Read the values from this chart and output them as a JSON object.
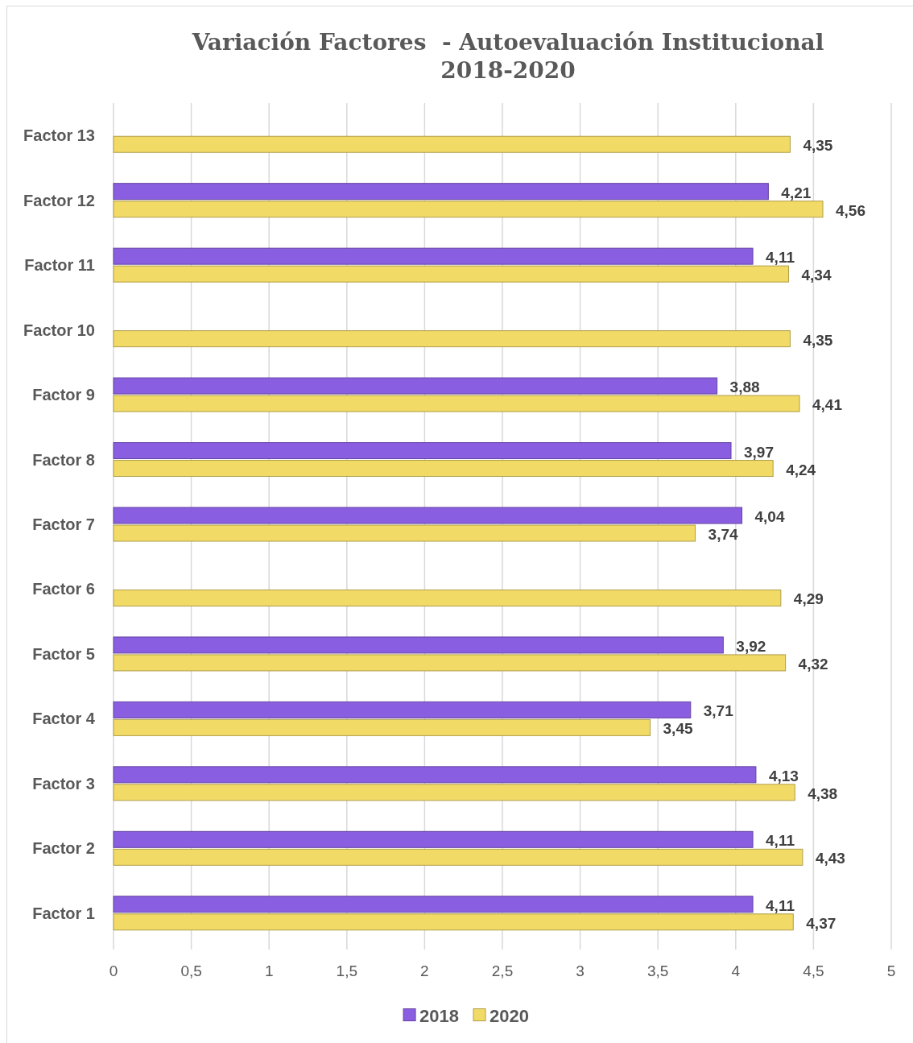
{
  "chart_data": {
    "type": "bar",
    "orientation": "horizontal",
    "title": "Variación Factores  - Autoevaluación Institucional 2018-2020",
    "categories": [
      "Factor 13",
      "Factor 12",
      "Factor 11",
      "Factor 10",
      "Factor 9",
      "Factor 8",
      "Factor 7",
      "Factor 6",
      "Factor 5",
      "Factor 4",
      "Factor 3",
      "Factor 2",
      "Factor 1"
    ],
    "series": [
      {
        "name": "2018",
        "color": "#8a5ee0",
        "values": [
          null,
          4.21,
          4.11,
          null,
          3.88,
          3.97,
          4.04,
          null,
          3.92,
          3.71,
          4.13,
          4.11,
          4.11
        ],
        "value_labels": [
          null,
          "4,21",
          "4,11",
          null,
          "3,88",
          "3,97",
          "4,04",
          null,
          "3,92",
          "3,71",
          "4,13",
          "4,11",
          "4,11"
        ]
      },
      {
        "name": "2020",
        "color": "#f2da66",
        "values": [
          4.35,
          4.56,
          4.34,
          4.35,
          4.41,
          4.24,
          3.74,
          4.29,
          4.32,
          3.45,
          4.38,
          4.43,
          4.37
        ],
        "value_labels": [
          "4,35",
          "4,56",
          "4,34",
          "4,35",
          "4,41",
          "4,24",
          "3,74",
          "4,29",
          "4,32",
          "3,45",
          "4,38",
          "4,43",
          "4,37"
        ]
      }
    ],
    "xlim": [
      0,
      5
    ],
    "xticks": [
      0,
      {
        "value": 0.5,
        "label": "0,5"
      },
      1,
      {
        "value": 1.5,
        "label": "1,5"
      },
      2,
      {
        "value": 2.5,
        "label": "2,5"
      },
      3,
      {
        "value": 3.5,
        "label": "3,5"
      },
      4,
      {
        "value": 4.5,
        "label": "4,5"
      },
      5
    ],
    "grid": "x",
    "legend": "bottom"
  }
}
